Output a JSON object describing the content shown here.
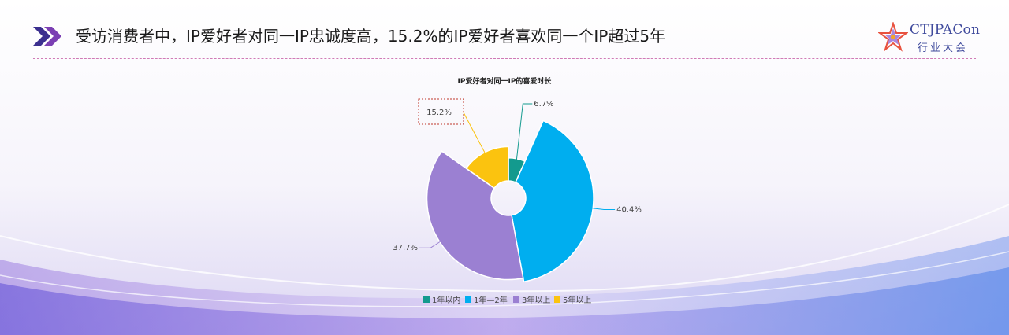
{
  "header": {
    "headline": "受访消费者中，IP爱好者对同一IP忠诚度高，15.2%的IP爱好者喜欢同一个IP超过5年"
  },
  "logo": {
    "name_en": "CTJPACon",
    "name_cn": "行业大会"
  },
  "chart_data": {
    "type": "pie",
    "title": "IP爱好者对同一IP的喜爱时长",
    "categories": [
      "1年以内",
      "1年—2年",
      "3年以上",
      "5年以上"
    ],
    "values": [
      6.7,
      40.4,
      37.7,
      15.2
    ],
    "labels": [
      "6.7%",
      "40.4%",
      "37.7%",
      "15.2%"
    ],
    "colors": [
      "#139a8e",
      "#00aeef",
      "#9b80d2",
      "#fbc30f"
    ],
    "legend_position": "bottom",
    "style": "nightingale-rose"
  }
}
